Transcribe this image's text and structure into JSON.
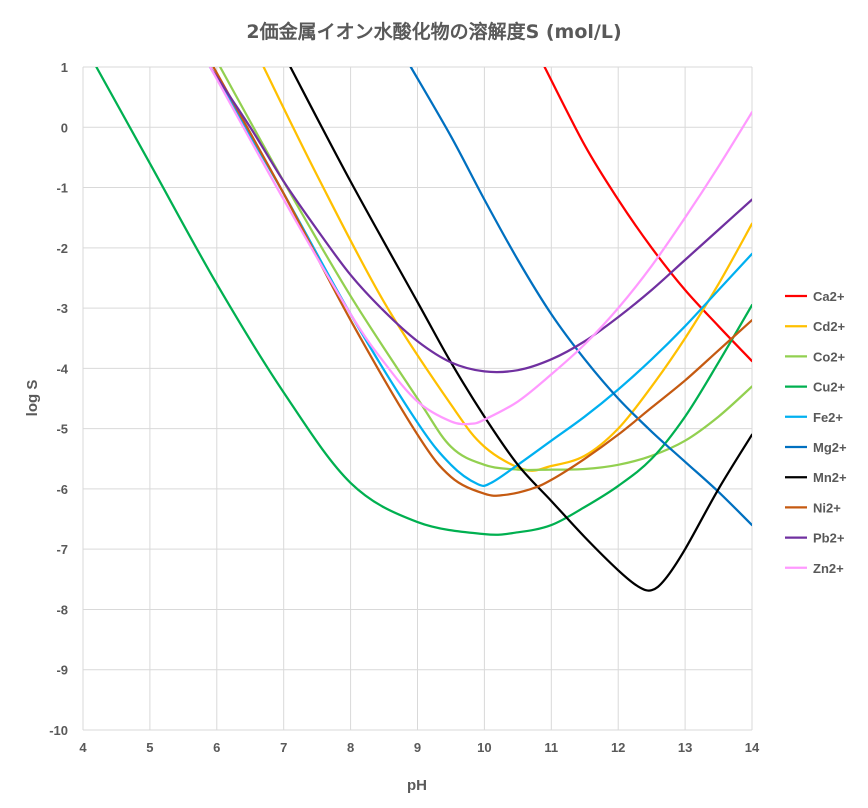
{
  "chart_data": {
    "type": "line",
    "title": "2価金属イオン水酸化物の溶解度S (mol/L)",
    "xlabel": "pH",
    "ylabel": "log S",
    "xlim": [
      4,
      14
    ],
    "ylim": [
      -10,
      1
    ],
    "xticks": [
      4,
      5,
      6,
      7,
      8,
      9,
      10,
      11,
      12,
      13,
      14
    ],
    "yticks": [
      1,
      0,
      -1,
      -2,
      -3,
      -4,
      -5,
      -6,
      -7,
      -8,
      -9,
      -10
    ],
    "grid": "vertical and horizontal",
    "legend_position": "right",
    "series": [
      {
        "name": "Ca2+",
        "color": "#ff0000",
        "points": [
          [
            10.9,
            1.0
          ],
          [
            11.5,
            -0.3
          ],
          [
            12.0,
            -1.2
          ],
          [
            12.5,
            -2.0
          ],
          [
            13.0,
            -2.7
          ],
          [
            13.5,
            -3.3
          ],
          [
            14.0,
            -3.88
          ]
        ]
      },
      {
        "name": "Cd2+",
        "color": "#ffc000",
        "points": [
          [
            6.7,
            1.0
          ],
          [
            7.5,
            -0.8
          ],
          [
            8.5,
            -2.9
          ],
          [
            9.5,
            -4.6
          ],
          [
            10.0,
            -5.3
          ],
          [
            10.6,
            -5.68
          ],
          [
            11.0,
            -5.62
          ],
          [
            11.5,
            -5.45
          ],
          [
            12.0,
            -5.0
          ],
          [
            12.5,
            -4.3
          ],
          [
            13.0,
            -3.5
          ],
          [
            13.5,
            -2.6
          ],
          [
            14.0,
            -1.6
          ]
        ]
      },
      {
        "name": "Co2+",
        "color": "#92d050",
        "points": [
          [
            6.05,
            1.0
          ],
          [
            7.0,
            -0.9
          ],
          [
            8.0,
            -2.8
          ],
          [
            9.0,
            -4.5
          ],
          [
            9.5,
            -5.3
          ],
          [
            10.0,
            -5.6
          ],
          [
            10.5,
            -5.68
          ],
          [
            11.0,
            -5.68
          ],
          [
            11.5,
            -5.67
          ],
          [
            12.0,
            -5.6
          ],
          [
            12.5,
            -5.45
          ],
          [
            13.0,
            -5.2
          ],
          [
            13.5,
            -4.8
          ],
          [
            14.0,
            -4.3
          ]
        ]
      },
      {
        "name": "Cu2+",
        "color": "#00b050",
        "points": [
          [
            4.2,
            1.0
          ],
          [
            5.0,
            -0.6
          ],
          [
            6.0,
            -2.6
          ],
          [
            7.0,
            -4.4
          ],
          [
            8.0,
            -5.9
          ],
          [
            9.0,
            -6.55
          ],
          [
            10.0,
            -6.75
          ],
          [
            10.5,
            -6.72
          ],
          [
            11.0,
            -6.6
          ],
          [
            11.5,
            -6.3
          ],
          [
            12.0,
            -5.95
          ],
          [
            12.5,
            -5.5
          ],
          [
            13.0,
            -4.8
          ],
          [
            13.5,
            -3.9
          ],
          [
            14.0,
            -2.95
          ]
        ]
      },
      {
        "name": "Fe2+",
        "color": "#00b0f0",
        "points": [
          [
            5.9,
            1.0
          ],
          [
            7.0,
            -1.1
          ],
          [
            8.0,
            -3.1
          ],
          [
            9.0,
            -4.9
          ],
          [
            9.5,
            -5.6
          ],
          [
            9.9,
            -5.92
          ],
          [
            10.1,
            -5.9
          ],
          [
            10.5,
            -5.6
          ],
          [
            11.0,
            -5.2
          ],
          [
            11.5,
            -4.8
          ],
          [
            12.0,
            -4.35
          ],
          [
            12.5,
            -3.85
          ],
          [
            13.0,
            -3.3
          ],
          [
            13.5,
            -2.7
          ],
          [
            14.0,
            -2.1
          ]
        ]
      },
      {
        "name": "Mg2+",
        "color": "#0070c0",
        "points": [
          [
            8.9,
            1.0
          ],
          [
            9.5,
            -0.15
          ],
          [
            10.0,
            -1.2
          ],
          [
            10.5,
            -2.2
          ],
          [
            11.0,
            -3.1
          ],
          [
            11.5,
            -3.85
          ],
          [
            12.0,
            -4.5
          ],
          [
            12.5,
            -5.05
          ],
          [
            13.0,
            -5.55
          ],
          [
            13.5,
            -6.05
          ],
          [
            14.0,
            -6.6
          ]
        ]
      },
      {
        "name": "Mn2+",
        "color": "#000000",
        "points": [
          [
            7.1,
            1.0
          ],
          [
            8.0,
            -0.9
          ],
          [
            9.0,
            -2.9
          ],
          [
            9.5,
            -3.9
          ],
          [
            10.0,
            -4.8
          ],
          [
            10.5,
            -5.6
          ],
          [
            11.0,
            -6.2
          ],
          [
            11.5,
            -6.8
          ],
          [
            12.0,
            -7.35
          ],
          [
            12.3,
            -7.62
          ],
          [
            12.5,
            -7.68
          ],
          [
            12.7,
            -7.5
          ],
          [
            13.0,
            -7.0
          ],
          [
            13.5,
            -6.0
          ],
          [
            14.0,
            -5.1
          ]
        ]
      },
      {
        "name": "Ni2+",
        "color": "#c55a11",
        "points": [
          [
            5.95,
            1.0
          ],
          [
            7.0,
            -1.1
          ],
          [
            8.0,
            -3.2
          ],
          [
            9.0,
            -5.1
          ],
          [
            9.5,
            -5.8
          ],
          [
            10.0,
            -6.08
          ],
          [
            10.3,
            -6.1
          ],
          [
            10.7,
            -6.0
          ],
          [
            11.0,
            -5.85
          ],
          [
            11.5,
            -5.5
          ],
          [
            12.0,
            -5.1
          ],
          [
            12.5,
            -4.65
          ],
          [
            13.0,
            -4.2
          ],
          [
            13.5,
            -3.7
          ],
          [
            14.0,
            -3.2
          ]
        ]
      },
      {
        "name": "Pb2+",
        "color": "#7030a0",
        "points": [
          [
            5.9,
            1.0
          ],
          [
            6.5,
            0.0
          ],
          [
            7.0,
            -0.9
          ],
          [
            7.5,
            -1.7
          ],
          [
            8.0,
            -2.45
          ],
          [
            8.5,
            -3.05
          ],
          [
            9.0,
            -3.55
          ],
          [
            9.5,
            -3.9
          ],
          [
            10.0,
            -4.05
          ],
          [
            10.5,
            -4.03
          ],
          [
            11.0,
            -3.85
          ],
          [
            11.5,
            -3.55
          ],
          [
            12.0,
            -3.15
          ],
          [
            12.5,
            -2.7
          ],
          [
            13.0,
            -2.2
          ],
          [
            13.5,
            -1.7
          ],
          [
            14.0,
            -1.2
          ]
        ]
      },
      {
        "name": "Zn2+",
        "color": "#ff99ff",
        "points": [
          [
            5.9,
            1.0
          ],
          [
            7.0,
            -1.2
          ],
          [
            8.0,
            -3.1
          ],
          [
            8.5,
            -3.9
          ],
          [
            9.0,
            -4.55
          ],
          [
            9.5,
            -4.88
          ],
          [
            9.8,
            -4.92
          ],
          [
            10.0,
            -4.85
          ],
          [
            10.5,
            -4.55
          ],
          [
            11.0,
            -4.1
          ],
          [
            11.5,
            -3.6
          ],
          [
            12.0,
            -3.0
          ],
          [
            12.5,
            -2.3
          ],
          [
            13.0,
            -1.5
          ],
          [
            13.5,
            -0.65
          ],
          [
            14.0,
            0.25
          ]
        ]
      }
    ]
  }
}
